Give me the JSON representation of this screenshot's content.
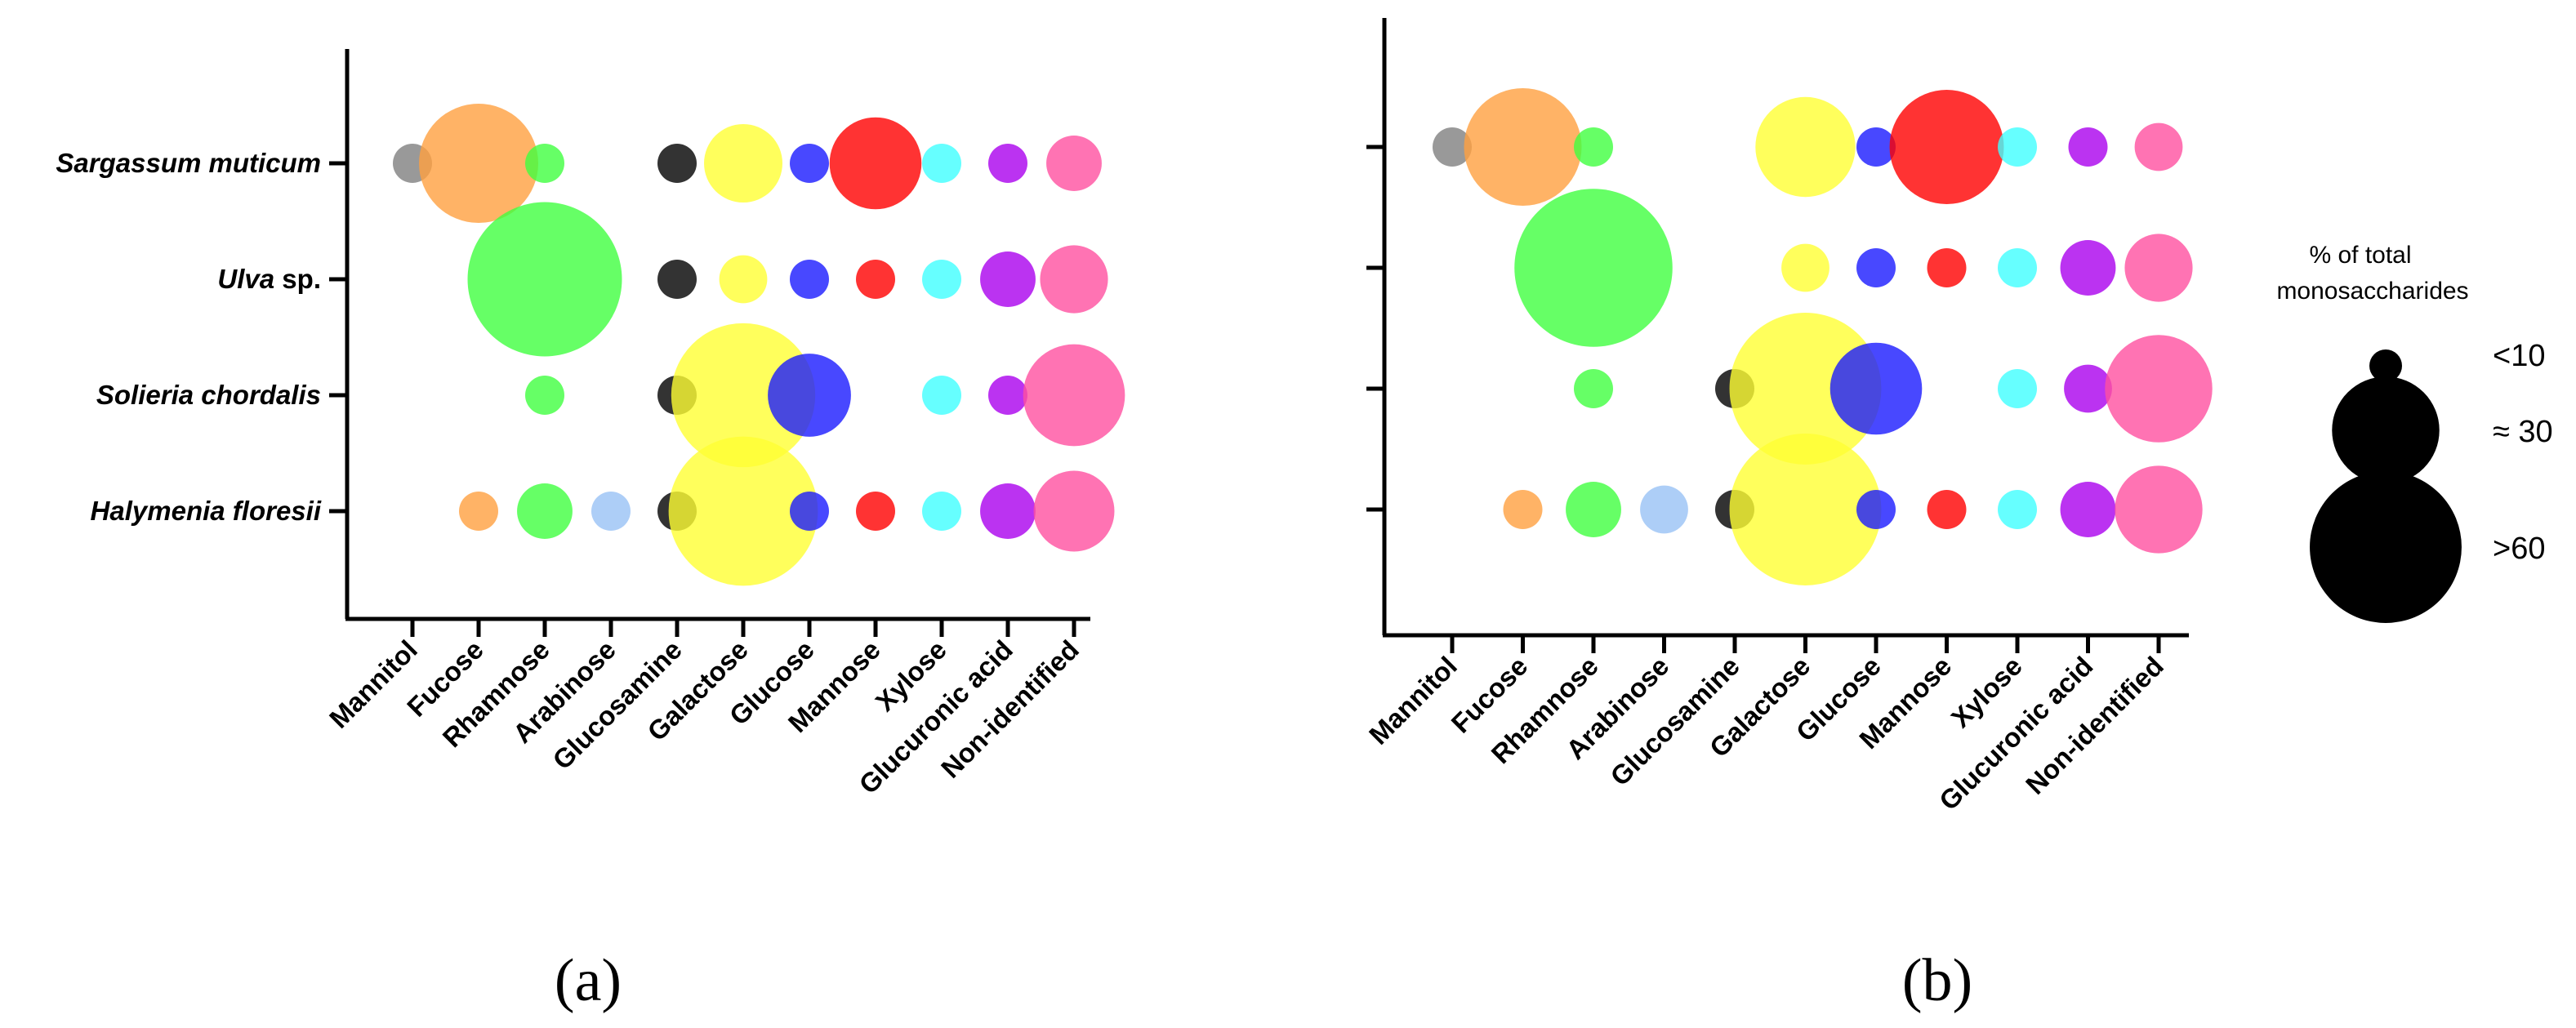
{
  "panels": [
    {
      "id": "a",
      "label": "(a)",
      "show_row_labels": true,
      "rows": [
        {
          "italic": "Sargassum muticum",
          "plain": ""
        },
        {
          "italic": "Ulva",
          "plain": " sp."
        },
        {
          "italic": "Solieria chordalis",
          "plain": ""
        },
        {
          "italic": "Halymenia floresii",
          "plain": ""
        }
      ]
    },
    {
      "id": "b",
      "label": "(b)",
      "show_row_labels": false,
      "rows": []
    }
  ],
  "legend": {
    "title_line1": "% of total",
    "title_line2": "monosaccharides",
    "items": [
      {
        "label": "<10",
        "value": 6
      },
      {
        "label": "≈ 30",
        "value": 30
      },
      {
        "label": ">60",
        "value": 60
      }
    ]
  },
  "chart_data": [
    {
      "type": "bubble",
      "panel": "a",
      "categories": [
        "Mannitol",
        "Fucose",
        "Rhamnose",
        "Arabinose",
        "Glucosamine",
        "Galactose",
        "Glucose",
        "Mannose",
        "Xylose",
        "Glucuronic acid",
        "Non-identified"
      ],
      "colors": [
        "#808080",
        "#FFA040",
        "#40FF40",
        "#99C2F5",
        "#000000",
        "#FFFF33",
        "#1A1AFF",
        "#FF0000",
        "#40FFFF",
        "#AA00EE",
        "#FF50A0"
      ],
      "rows": [
        "Sargassum muticum",
        "Ulva sp.",
        "Solieria chordalis",
        "Halymenia floresii"
      ],
      "values": [
        [
          4,
          37,
          4,
          0,
          4,
          16,
          4,
          22,
          4,
          4,
          8
        ],
        [
          0,
          0,
          62,
          0,
          4,
          6,
          4,
          4,
          4,
          8,
          12
        ],
        [
          0,
          0,
          4,
          0,
          4,
          54,
          18,
          0,
          4,
          4,
          27
        ],
        [
          0,
          4,
          8,
          4,
          4,
          58,
          4,
          4,
          4,
          8,
          17
        ]
      ]
    },
    {
      "type": "bubble",
      "panel": "b",
      "categories": [
        "Mannitol",
        "Fucose",
        "Rhamnose",
        "Arabinose",
        "Glucosamine",
        "Galactose",
        "Glucose",
        "Mannose",
        "Xylose",
        "Glucuronic acid",
        "Non-identified"
      ],
      "colors": [
        "#808080",
        "#FFA040",
        "#40FF40",
        "#99C2F5",
        "#000000",
        "#FFFF33",
        "#1A1AFF",
        "#FF0000",
        "#40FFFF",
        "#AA00EE",
        "#FF50A0"
      ],
      "rows": [
        "Sargassum muticum",
        "Ulva sp.",
        "Solieria chordalis",
        "Halymenia floresii"
      ],
      "values": [
        [
          4,
          36,
          4,
          0,
          0,
          26,
          4,
          34,
          4,
          4,
          6
        ],
        [
          0,
          0,
          65,
          0,
          0,
          6,
          4,
          4,
          4,
          8,
          12
        ],
        [
          0,
          0,
          4,
          0,
          4,
          60,
          22,
          0,
          4,
          6,
          30
        ],
        [
          0,
          4,
          8,
          6,
          4,
          60,
          4,
          4,
          4,
          8,
          20
        ]
      ]
    }
  ]
}
